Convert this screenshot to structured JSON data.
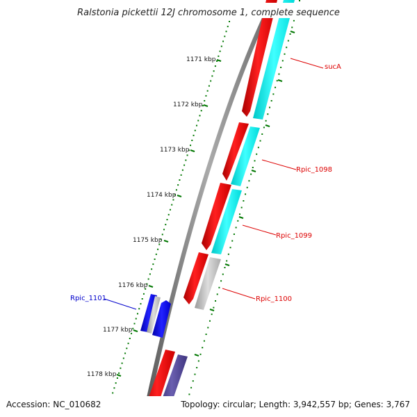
{
  "title": "Ralstonia pickettii 12J chromosome 1, complete sequence",
  "footer": {
    "accession": "Accession: NC_010682",
    "summary": "Topology: circular; Length: 3,942,557 bp; Genes: 3,767"
  },
  "ticks": [
    {
      "label": "1171 kbp"
    },
    {
      "label": "1172 kbp"
    },
    {
      "label": "1173 kbp"
    },
    {
      "label": "1174 kbp"
    },
    {
      "label": "1175 kbp"
    },
    {
      "label": "1176 kbp"
    },
    {
      "label": "1177 kbp"
    },
    {
      "label": "1178 kbp"
    }
  ],
  "gene_labels": [
    {
      "text": "sucA",
      "color": "#dd0000"
    },
    {
      "text": "Rpic_1098",
      "color": "#dd0000"
    },
    {
      "text": "Rpic_1099",
      "color": "#dd0000"
    },
    {
      "text": "Rpic_1100",
      "color": "#dd0000"
    },
    {
      "text": "Rpic_1101",
      "color": "#0000cc"
    }
  ],
  "colors": {
    "cds_forward": "#ff0000",
    "orf_frame": "#00ffff",
    "reverse_strand": "#0000ff",
    "rna_gray": "#bbbbbb",
    "dark_purple": "#4b3f8f",
    "backbone": "#777777",
    "tick_green": "#007700"
  }
}
